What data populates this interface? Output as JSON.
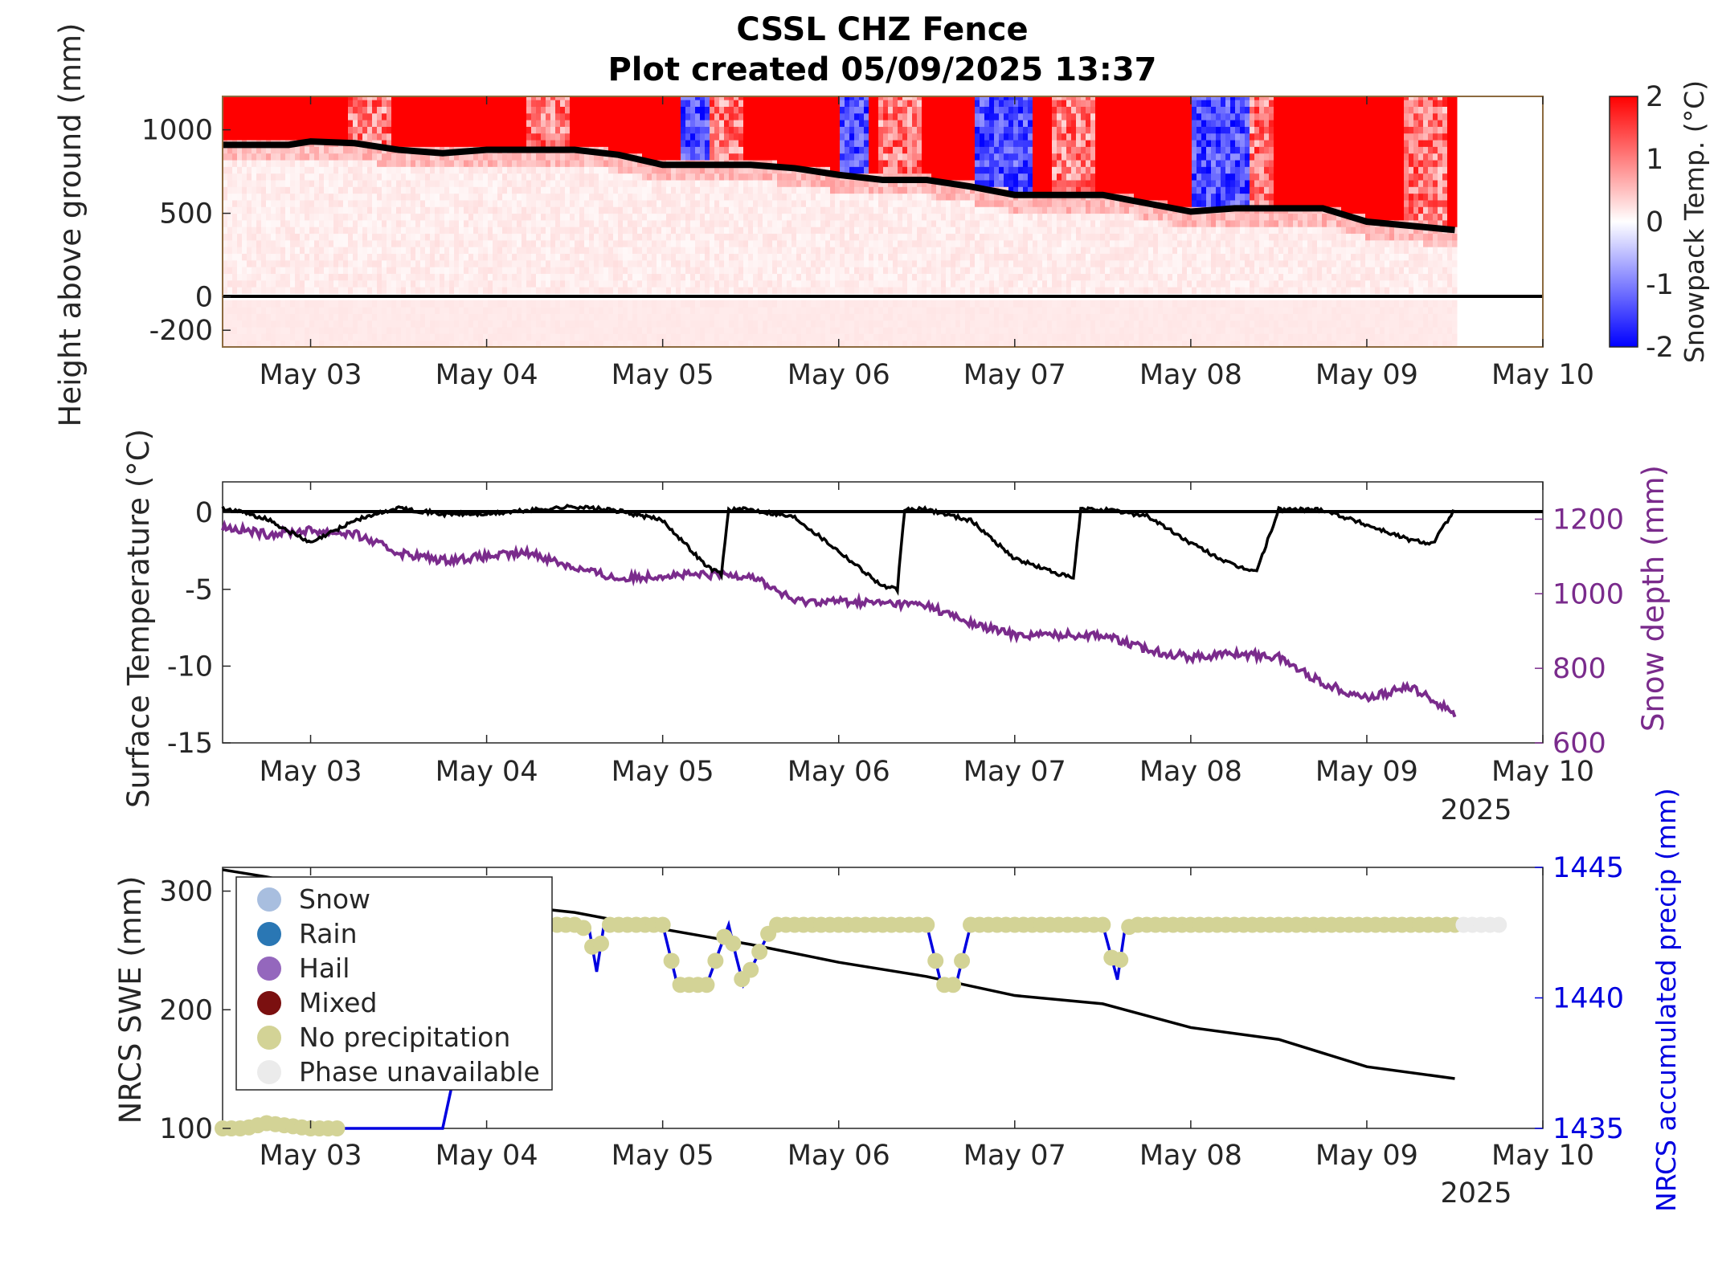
{
  "title": {
    "line1": "CSSL CHZ Fence",
    "line2": "Plot created 05/09/2025 13:37"
  },
  "x_ticks": [
    "May 03",
    "May 04",
    "May 05",
    "May 06",
    "May 07",
    "May 08",
    "May 09",
    "May 10"
  ],
  "x_year": "2025",
  "colors": {
    "warm": "#ff0000",
    "cold": "#0000ff",
    "surface_temp": "#000000",
    "snow_depth": "#7a2b8c",
    "precip": "#0000e0",
    "swe": "#000000",
    "no_precip_marker": "#d3d396",
    "phase_unavailable_marker": "#ebebeb"
  },
  "chart_data": [
    {
      "type": "heatmap",
      "panel": "top",
      "ylabel": "Height above ground (mm)",
      "colorbar_label": "Snowpack Temp. (°C)",
      "colorbar_ticks": [
        "2",
        "1",
        "0",
        "-1",
        "-2"
      ],
      "clim": [
        -2,
        2
      ],
      "xlim": [
        "2025-05-02 12:00",
        "2025-05-10 00:00"
      ],
      "ylim": [
        -300,
        1200
      ],
      "y_ticks": [
        "1000",
        "500",
        "0",
        "-200"
      ],
      "snow_surface_line": {
        "x": [
          "05-02 12:00",
          "05-02 21:00",
          "05-03 00:00",
          "05-03 06:00",
          "05-03 12:00",
          "05-03 18:00",
          "05-04 00:00",
          "05-04 12:00",
          "05-04 18:00",
          "05-05 00:00",
          "05-05 12:00",
          "05-05 18:00",
          "05-06 00:00",
          "05-06 06:00",
          "05-06 12:00",
          "05-06 18:00",
          "05-07 00:00",
          "05-07 12:00",
          "05-07 18:00",
          "05-08 00:00",
          "05-08 06:00",
          "05-08 18:00",
          "05-09 00:00",
          "05-09 12:00"
        ],
        "y": [
          910,
          910,
          930,
          920,
          880,
          860,
          880,
          880,
          850,
          790,
          790,
          770,
          730,
          700,
          700,
          660,
          610,
          610,
          560,
          510,
          530,
          530,
          450,
          400
        ]
      }
    },
    {
      "type": "line",
      "panel": "middle",
      "ylabel": "Surface Temperature (°C)",
      "y2label": "Snow depth (mm)",
      "ylim": [
        -15,
        2
      ],
      "y2lim": [
        600,
        1300
      ],
      "y_ticks": [
        "0",
        "-5",
        "-10",
        "-15"
      ],
      "y2_ticks": [
        "1200",
        "1000",
        "800",
        "600"
      ],
      "series": [
        {
          "name": "Surface Temperature",
          "axis": "left",
          "x": [
            "05-02 12:00",
            "05-02 18:00",
            "05-03 00:00",
            "05-03 06:00",
            "05-03 12:00",
            "05-03 18:00",
            "05-04 00:00",
            "05-04 12:00",
            "05-04 18:00",
            "05-05 00:00",
            "05-05 06:00",
            "05-05 08:00",
            "05-05 09:00",
            "05-05 12:00",
            "05-05 18:00",
            "05-06 00:00",
            "05-06 06:00",
            "05-06 08:00",
            "05-06 09:00",
            "05-06 12:00",
            "05-06 18:00",
            "05-07 00:00",
            "05-07 06:00",
            "05-07 08:00",
            "05-07 09:00",
            "05-07 12:00",
            "05-07 18:00",
            "05-08 00:00",
            "05-08 06:00",
            "05-08 09:00",
            "05-08 12:00",
            "05-08 18:00",
            "05-09 00:00",
            "05-09 06:00",
            "05-09 09:00",
            "05-09 12:00"
          ],
          "y": [
            0.3,
            -0.4,
            -2.0,
            -0.5,
            0.3,
            -0.1,
            -0.1,
            0.4,
            0.1,
            -0.5,
            -3.5,
            -4.0,
            0.2,
            0.2,
            -0.3,
            -2.5,
            -4.8,
            -5.0,
            0.2,
            0.2,
            -0.5,
            -3.0,
            -4.0,
            -4.3,
            0.2,
            0.2,
            -0.2,
            -2.0,
            -3.5,
            -3.8,
            0.2,
            0.2,
            -0.8,
            -1.8,
            -2.0,
            0.2
          ]
        },
        {
          "name": "Snow depth",
          "axis": "right",
          "x": [
            "05-02 12:00",
            "05-02 18:00",
            "05-03 00:00",
            "05-03 06:00",
            "05-03 12:00",
            "05-03 18:00",
            "05-04 00:00",
            "05-04 06:00",
            "05-04 12:00",
            "05-04 18:00",
            "05-05 00:00",
            "05-05 12:00",
            "05-05 18:00",
            "05-06 00:00",
            "05-06 12:00",
            "05-06 18:00",
            "05-07 00:00",
            "05-07 12:00",
            "05-07 18:00",
            "05-08 00:00",
            "05-08 06:00",
            "05-08 12:00",
            "05-08 18:00",
            "05-09 00:00",
            "05-09 06:00",
            "05-09 12:00"
          ],
          "y": [
            1180,
            1160,
            1170,
            1160,
            1110,
            1090,
            1100,
            1110,
            1070,
            1040,
            1050,
            1050,
            980,
            980,
            970,
            920,
            890,
            890,
            850,
            830,
            840,
            830,
            760,
            720,
            750,
            680
          ]
        }
      ]
    },
    {
      "type": "line",
      "panel": "bottom",
      "ylabel": "NRCS SWE (mm)",
      "y2label": "NRCS accumulated precip (mm)",
      "ylim": [
        100,
        320
      ],
      "y2lim": [
        1435,
        1445
      ],
      "y_ticks": [
        "300",
        "200",
        "100"
      ],
      "y2_ticks": [
        "1445",
        "1440",
        "1435"
      ],
      "legend_position": "top-left",
      "legend": [
        "Snow",
        "Rain",
        "Hail",
        "Mixed",
        "No precipitation",
        "Phase unavailable"
      ],
      "legend_colors": [
        "#a8bedf",
        "#2a77b4",
        "#9467bd",
        "#7b1010",
        "#d3d396",
        "#ebebeb"
      ],
      "series": [
        {
          "name": "SWE",
          "axis": "left",
          "x": [
            "05-02 12:00",
            "05-02 18:00",
            "05-03 00:00",
            "05-03 12:00",
            "05-04 00:00",
            "05-04 12:00",
            "05-05 00:00",
            "05-05 12:00",
            "05-06 00:00",
            "05-06 12:00",
            "05-07 00:00",
            "05-07 12:00",
            "05-08 00:00",
            "05-08 12:00",
            "05-09 00:00",
            "05-09 12:00"
          ],
          "y": [
            318,
            312,
            305,
            295,
            290,
            282,
            268,
            255,
            240,
            228,
            212,
            205,
            185,
            175,
            152,
            142
          ]
        },
        {
          "name": "NRCS accumulated precip",
          "axis": "right",
          "x": [
            "05-02 12:00",
            "05-02 15:00",
            "05-02 18:00",
            "05-03 00:00",
            "05-03 12:00",
            "05-03 18:00",
            "05-04 00:00",
            "05-04 12:00",
            "05-04 14:00",
            "05-04 15:00",
            "05-04 16:00",
            "05-04 18:00",
            "05-05 00:00",
            "05-05 02:00",
            "05-05 06:00",
            "05-05 09:00",
            "05-05 10:00",
            "05-05 11:00",
            "05-05 15:00",
            "05-06 00:00",
            "05-06 12:00",
            "05-06 14:00",
            "05-06 16:00",
            "05-06 18:00",
            "05-07 00:00",
            "05-07 12:00",
            "05-07 14:00",
            "05-07 15:00",
            "05-07 16:00",
            "05-08 00:00",
            "05-09 12:00"
          ],
          "y": [
            1435,
            1435,
            1435.2,
            1435,
            1435,
            1435,
            1442.8,
            1442.8,
            1442.6,
            1441.0,
            1442.8,
            1442.8,
            1442.8,
            1440.5,
            1440.5,
            1442.8,
            1441.6,
            1440.5,
            1442.8,
            1442.8,
            1442.8,
            1440.5,
            1440.5,
            1442.8,
            1442.8,
            1442.8,
            1440.7,
            1442.6,
            1442.8,
            1442.8,
            1442.8
          ]
        }
      ]
    }
  ]
}
